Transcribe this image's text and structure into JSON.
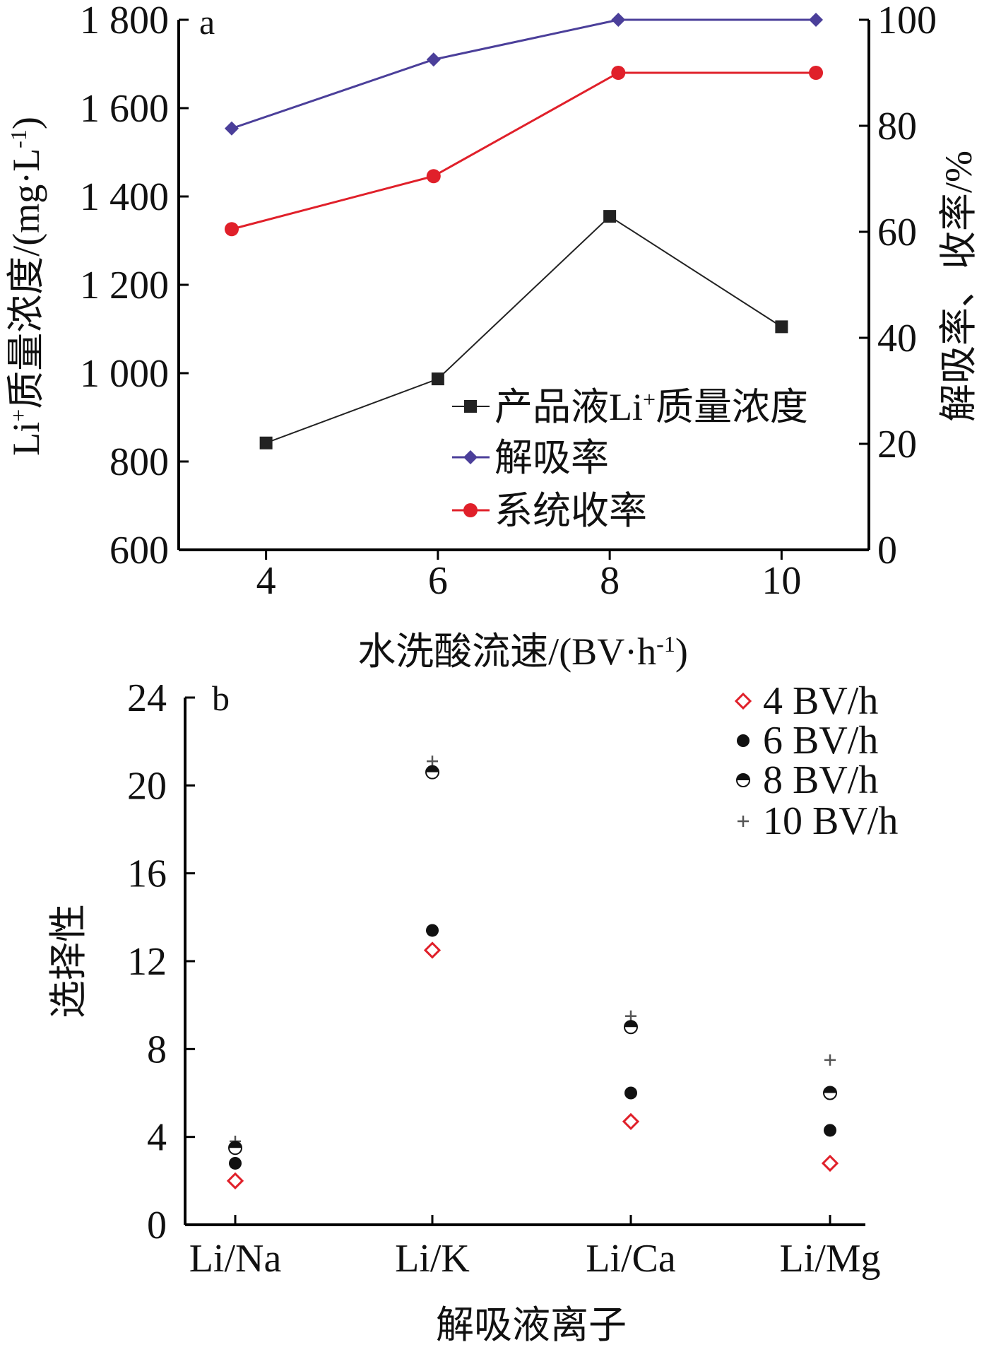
{
  "chart_data": [
    {
      "panel_label": "a",
      "type": "line",
      "x": [
        4,
        6,
        8,
        10
      ],
      "xlabel": "水洗酸流速/(BV·h",
      "xlabel_sup": "-1",
      "xlabel_end": ")",
      "xlim": [
        3,
        11
      ],
      "x_ticks": [
        "4",
        "6",
        "8",
        "10"
      ],
      "ylabel_left": "Li",
      "ylabel_left_sup": "+",
      "ylabel_left_rest": "质量浓度/(mg·L",
      "ylabel_left_sup2": "-1",
      "ylabel_left_end": ")",
      "ylim_left": [
        600,
        1800
      ],
      "y_ticks_left": [
        "600",
        "800",
        "1 000",
        "1 200",
        "1 400",
        "1 600",
        "1 800"
      ],
      "ylabel_right": "解吸率、收率/%",
      "ylim_right": [
        0,
        100
      ],
      "y_ticks_right": [
        "0",
        "20",
        "40",
        "60",
        "80",
        "100"
      ],
      "series": [
        {
          "name": "产品液Li",
          "name_sup": "+",
          "name_rest": "质量浓度",
          "axis": "left",
          "marker": "square",
          "color": "#222222",
          "x": [
            4,
            6,
            8,
            10
          ],
          "values": [
            842,
            987,
            1355,
            1105
          ]
        },
        {
          "name": "解吸率",
          "axis": "right",
          "marker": "diamond",
          "color": "#4b3f9a",
          "x": [
            3.6,
            5.95,
            8.1,
            10.4
          ],
          "values": [
            79.5,
            92.5,
            100,
            100
          ]
        },
        {
          "name": "系统收率",
          "axis": "right",
          "marker": "circle",
          "color": "#e0202a",
          "x": [
            3.6,
            5.95,
            8.1,
            10.4
          ],
          "values": [
            60.5,
            70.5,
            90,
            90
          ]
        }
      ],
      "legend_position": "lower-right"
    },
    {
      "panel_label": "b",
      "type": "scatter",
      "categories": [
        "Li/Na",
        "Li/K",
        "Li/Ca",
        "Li/Mg"
      ],
      "xlabel": "解吸液离子",
      "ylabel": "选择性",
      "ylim": [
        0,
        24
      ],
      "y_ticks": [
        "0",
        "4",
        "8",
        "12",
        "16",
        "20",
        "24"
      ],
      "series": [
        {
          "name": "4 BV/h",
          "marker": "open-diamond",
          "color": "#e0202a",
          "values": [
            2.0,
            12.5,
            4.7,
            2.8
          ]
        },
        {
          "name": "6 BV/h",
          "marker": "filled-circle",
          "color": "#111111",
          "values": [
            2.8,
            13.4,
            6.0,
            4.3
          ]
        },
        {
          "name": "8 BV/h",
          "marker": "half-circle",
          "color": "#111111",
          "values": [
            3.5,
            20.6,
            9.0,
            6.0
          ]
        },
        {
          "name": "10 BV/h",
          "marker": "plus",
          "color": "#555555",
          "values": [
            3.8,
            21.1,
            9.5,
            7.5
          ]
        }
      ],
      "legend_position": "top-right"
    }
  ]
}
